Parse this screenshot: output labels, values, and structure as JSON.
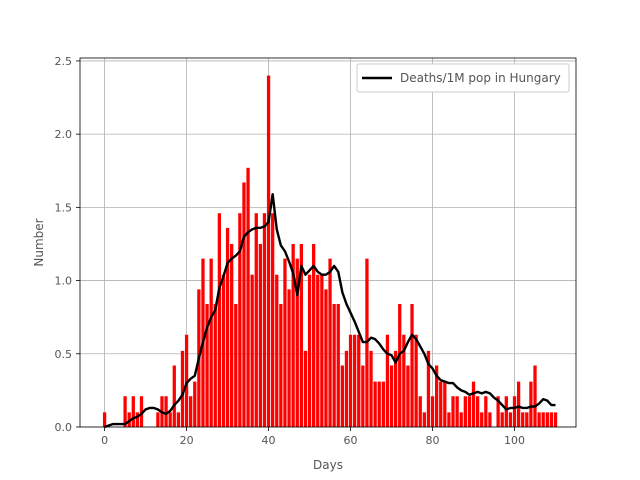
{
  "chart_data": {
    "type": "bar",
    "xlabel": "Days",
    "ylabel": "Number",
    "xlim": [
      -6,
      115
    ],
    "ylim": [
      0,
      2.52
    ],
    "xticks": [
      0,
      20,
      40,
      60,
      80,
      100
    ],
    "yticks": [
      0.0,
      0.5,
      1.0,
      1.5,
      2.0,
      2.5
    ],
    "xtick_labels": [
      "0",
      "20",
      "40",
      "60",
      "80",
      "100"
    ],
    "ytick_labels": [
      "0.0",
      "0.5",
      "1.0",
      "1.5",
      "2.0",
      "2.5"
    ],
    "grid": true,
    "legend_position": "top-right",
    "bar_color": "#ff0000",
    "line_color": "#000000",
    "series": [
      {
        "kind": "bar",
        "x": [
          0,
          1,
          2,
          3,
          4,
          5,
          6,
          7,
          8,
          9,
          10,
          11,
          12,
          13,
          14,
          15,
          16,
          17,
          18,
          19,
          20,
          21,
          22,
          23,
          24,
          25,
          26,
          27,
          28,
          29,
          30,
          31,
          32,
          33,
          34,
          35,
          36,
          37,
          38,
          39,
          40,
          41,
          42,
          43,
          44,
          45,
          46,
          47,
          48,
          49,
          50,
          51,
          52,
          53,
          54,
          55,
          56,
          57,
          58,
          59,
          60,
          61,
          62,
          63,
          64,
          65,
          66,
          67,
          68,
          69,
          70,
          71,
          72,
          73,
          74,
          75,
          76,
          77,
          78,
          79,
          80,
          81,
          82,
          83,
          84,
          85,
          86,
          87,
          88,
          89,
          90,
          91,
          92,
          93,
          94,
          95,
          96,
          97,
          98,
          99,
          100,
          101,
          102,
          103,
          104,
          105,
          106,
          107,
          108,
          109,
          110
        ],
        "values": [
          0.1,
          0,
          0,
          0,
          0,
          0.21,
          0.1,
          0.21,
          0.1,
          0.21,
          0,
          0,
          0,
          0.1,
          0.21,
          0.21,
          0.1,
          0.42,
          0.1,
          0.52,
          0.63,
          0.21,
          0.31,
          0.94,
          1.15,
          0.84,
          1.15,
          0.84,
          1.46,
          1.04,
          1.36,
          1.25,
          0.84,
          1.46,
          1.67,
          1.77,
          1.04,
          1.46,
          1.25,
          1.46,
          2.4,
          1.46,
          1.04,
          0.84,
          1.15,
          0.94,
          1.25,
          1.15,
          1.25,
          0.52,
          1.04,
          1.25,
          1.04,
          1.04,
          0.94,
          1.15,
          0.84,
          0.84,
          0.42,
          0.52,
          0.63,
          0.63,
          0.63,
          0.42,
          1.15,
          0.52,
          0.31,
          0.31,
          0.31,
          0.63,
          0.42,
          0.52,
          0.84,
          0.63,
          0.42,
          0.84,
          0.63,
          0.21,
          0.1,
          0.52,
          0.21,
          0.42,
          0.31,
          0.31,
          0.1,
          0.21,
          0.21,
          0.1,
          0.21,
          0.21,
          0.31,
          0.21,
          0.1,
          0.21,
          0.1,
          0,
          0.21,
          0.1,
          0.21,
          0.1,
          0.21,
          0.31,
          0.1,
          0.1,
          0.31,
          0.42,
          0.1,
          0.1,
          0.1,
          0.1,
          0.1
        ]
      },
      {
        "kind": "line",
        "name": "Deaths/1M pop in Hungary",
        "x": [
          0,
          1,
          2,
          3,
          4,
          5,
          6,
          7,
          8,
          9,
          10,
          11,
          12,
          13,
          14,
          15,
          16,
          17,
          18,
          19,
          20,
          21,
          22,
          23,
          24,
          25,
          26,
          27,
          28,
          29,
          30,
          31,
          32,
          33,
          34,
          35,
          36,
          37,
          38,
          39,
          40,
          41,
          42,
          43,
          44,
          45,
          46,
          47,
          48,
          49,
          50,
          51,
          52,
          53,
          54,
          55,
          56,
          57,
          58,
          59,
          60,
          61,
          62,
          63,
          64,
          65,
          66,
          67,
          68,
          69,
          70,
          71,
          72,
          73,
          74,
          75,
          76,
          77,
          78,
          79,
          80,
          81,
          82,
          83,
          84,
          85,
          86,
          87,
          88,
          89,
          90,
          91,
          92,
          93,
          94,
          95,
          96,
          97,
          98,
          99,
          100,
          101,
          102,
          103,
          104,
          105,
          106,
          107,
          108,
          109,
          110
        ],
        "values": [
          0.0,
          0.01,
          0.02,
          0.02,
          0.02,
          0.02,
          0.04,
          0.06,
          0.07,
          0.09,
          0.12,
          0.13,
          0.13,
          0.12,
          0.1,
          0.09,
          0.11,
          0.15,
          0.18,
          0.22,
          0.3,
          0.33,
          0.35,
          0.47,
          0.58,
          0.68,
          0.75,
          0.8,
          0.95,
          1.03,
          1.12,
          1.15,
          1.17,
          1.2,
          1.3,
          1.33,
          1.35,
          1.36,
          1.36,
          1.37,
          1.4,
          1.59,
          1.35,
          1.24,
          1.2,
          1.13,
          1.05,
          0.9,
          1.1,
          1.04,
          1.07,
          1.1,
          1.06,
          1.04,
          1.04,
          1.06,
          1.1,
          1.06,
          0.92,
          0.84,
          0.78,
          0.72,
          0.65,
          0.58,
          0.58,
          0.61,
          0.6,
          0.57,
          0.53,
          0.5,
          0.49,
          0.44,
          0.5,
          0.52,
          0.58,
          0.63,
          0.6,
          0.55,
          0.5,
          0.43,
          0.4,
          0.35,
          0.32,
          0.31,
          0.3,
          0.3,
          0.27,
          0.25,
          0.24,
          0.22,
          0.23,
          0.24,
          0.23,
          0.24,
          0.23,
          0.2,
          0.18,
          0.15,
          0.12,
          0.13,
          0.13,
          0.14,
          0.13,
          0.13,
          0.14,
          0.14,
          0.16,
          0.19,
          0.18,
          0.15,
          0.15
        ]
      }
    ]
  }
}
